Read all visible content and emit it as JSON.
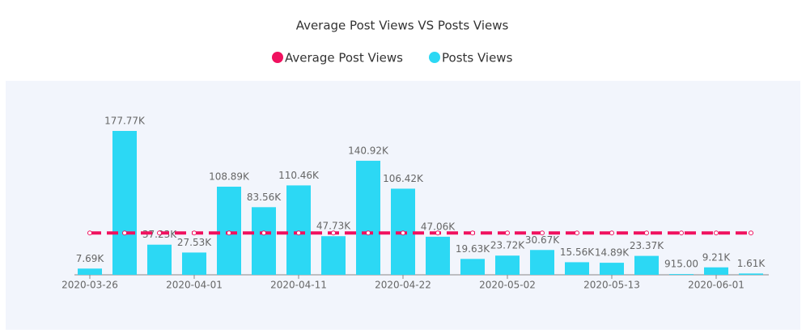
{
  "chart_data": {
    "type": "bar",
    "title": "Average Post Views VS Posts Views",
    "categories": [
      "2020-03-26",
      null,
      null,
      "2020-04-01",
      null,
      null,
      "2020-04-11",
      null,
      null,
      "2020-04-22",
      null,
      null,
      "2020-05-02",
      null,
      null,
      "2020-05-13",
      null,
      null,
      "2020-06-01",
      null
    ],
    "series": [
      {
        "name": "Average Post Views",
        "type": "line",
        "color": "#f0115f",
        "values": [
          51742,
          51742,
          51742,
          51742,
          51742,
          51742,
          51742,
          51742,
          51742,
          51742,
          51742,
          51742,
          51742,
          51742,
          51742,
          51742,
          51742,
          51742,
          51742,
          51742
        ]
      },
      {
        "name": "Posts Views",
        "type": "bar",
        "color": "#2cd8f4",
        "values": [
          7690,
          177770,
          37230,
          27530,
          108890,
          83560,
          110460,
          47730,
          140920,
          106420,
          47060,
          19630,
          23720,
          30670,
          15560,
          14890,
          23370,
          915,
          9210,
          1610
        ],
        "value_labels": [
          "7.69K",
          "177.77K",
          "37.23K",
          "27.53K",
          "108.89K",
          "83.56K",
          "110.46K",
          "47.73K",
          "140.92K",
          "106.42K",
          "47.06K",
          "19.63K",
          "23.72K",
          "30.67K",
          "15.56K",
          "14.89K",
          "23.37K",
          "915.00",
          "9.21K",
          "1.61K"
        ]
      }
    ]
  }
}
